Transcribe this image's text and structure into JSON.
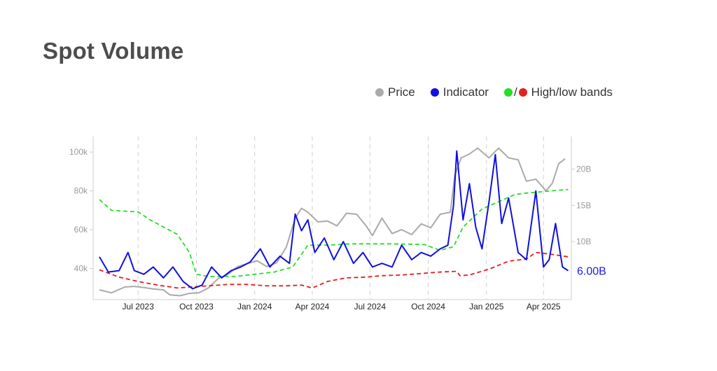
{
  "title": "Spot Volume",
  "legend": {
    "price": "Price",
    "indicator": "Indicator",
    "bands_sep": "/",
    "bands": "High/low bands"
  },
  "colors": {
    "price": "#aaaaaa",
    "indicator": "#1010e0",
    "high": "#22e022",
    "low": "#e02020",
    "title": "#4d4d4d"
  },
  "chart_data": {
    "type": "line",
    "x_ticks": [
      "Jul 2023",
      "Oct 2023",
      "Jan 2024",
      "Apr 2024",
      "Jul 2024",
      "Oct 2024",
      "Jan 2025",
      "Apr 2025"
    ],
    "y_left": {
      "ticks": [
        "40k",
        "60k",
        "80k",
        "100k"
      ],
      "ylim": [
        24000,
        108000
      ]
    },
    "y_right": {
      "ticks": [
        "10B",
        "15B",
        "20B"
      ],
      "ylim": [
        2.0,
        24.5
      ]
    },
    "grid": "vertical dashed",
    "last_value_label": "6.00B",
    "series": [
      {
        "name": "Price",
        "axis": "left",
        "x": [
          "2023-05-01",
          "2023-05-20",
          "2023-06-10",
          "2023-06-25",
          "2023-07-10",
          "2023-07-25",
          "2023-08-10",
          "2023-08-20",
          "2023-09-05",
          "2023-09-20",
          "2023-10-05",
          "2023-10-20",
          "2023-11-05",
          "2023-11-20",
          "2023-12-05",
          "2023-12-20",
          "2024-01-05",
          "2024-01-20",
          "2024-02-05",
          "2024-02-20",
          "2024-03-05",
          "2024-03-15",
          "2024-03-25",
          "2024-04-10",
          "2024-04-25",
          "2024-05-10",
          "2024-05-25",
          "2024-06-10",
          "2024-06-25",
          "2024-07-05",
          "2024-07-20",
          "2024-08-05",
          "2024-08-20",
          "2024-09-05",
          "2024-09-20",
          "2024-10-05",
          "2024-10-20",
          "2024-11-05",
          "2024-11-12",
          "2024-11-22",
          "2024-12-05",
          "2024-12-18",
          "2025-01-05",
          "2025-01-20",
          "2025-02-05",
          "2025-02-20",
          "2025-03-05",
          "2025-03-20",
          "2025-04-05",
          "2025-04-15",
          "2025-04-25",
          "2025-05-05"
        ],
        "values": [
          29000,
          27500,
          30500,
          30800,
          30200,
          29500,
          29000,
          26500,
          26000,
          27200,
          27500,
          30000,
          35000,
          37000,
          41000,
          42500,
          44000,
          41000,
          43000,
          51000,
          66000,
          71000,
          69000,
          64000,
          64500,
          62000,
          68500,
          68000,
          62000,
          57000,
          66000,
          58000,
          60000,
          57500,
          63000,
          61000,
          68000,
          69000,
          88000,
          97000,
          99000,
          102000,
          97000,
          102000,
          97000,
          96000,
          85000,
          86000,
          80000,
          84000,
          94000,
          96500
        ]
      },
      {
        "name": "Indicator",
        "axis": "right",
        "x": [
          "2023-05-01",
          "2023-05-15",
          "2023-06-01",
          "2023-06-15",
          "2023-06-25",
          "2023-07-10",
          "2023-07-25",
          "2023-08-10",
          "2023-08-25",
          "2023-09-10",
          "2023-09-25",
          "2023-10-10",
          "2023-10-25",
          "2023-11-10",
          "2023-11-25",
          "2023-12-10",
          "2023-12-25",
          "2024-01-10",
          "2024-01-25",
          "2024-02-10",
          "2024-02-25",
          "2024-03-05",
          "2024-03-15",
          "2024-03-25",
          "2024-04-05",
          "2024-04-20",
          "2024-05-05",
          "2024-05-20",
          "2024-06-05",
          "2024-06-20",
          "2024-07-05",
          "2024-07-20",
          "2024-08-05",
          "2024-08-20",
          "2024-09-05",
          "2024-09-20",
          "2024-10-05",
          "2024-10-20",
          "2024-11-01",
          "2024-11-10",
          "2024-11-15",
          "2024-11-25",
          "2024-12-05",
          "2024-12-15",
          "2024-12-25",
          "2025-01-05",
          "2025-01-15",
          "2025-01-25",
          "2025-02-05",
          "2025-02-20",
          "2025-03-05",
          "2025-03-20",
          "2025-04-01",
          "2025-04-10",
          "2025-04-20",
          "2025-05-01",
          "2025-05-10"
        ],
        "values": [
          7.9,
          5.8,
          6.0,
          8.5,
          6.0,
          5.5,
          6.5,
          5.0,
          6.5,
          4.5,
          3.5,
          4.0,
          6.5,
          5.0,
          6.0,
          6.5,
          7.2,
          9.0,
          6.5,
          8.0,
          7.0,
          13.8,
          11.5,
          13.0,
          8.5,
          10.5,
          7.5,
          10.0,
          7.0,
          8.5,
          6.5,
          7.0,
          6.5,
          9.5,
          7.5,
          8.5,
          8.0,
          9.0,
          9.5,
          15.0,
          22.5,
          13.0,
          18.0,
          12.0,
          9.0,
          15.5,
          22.0,
          12.5,
          16.0,
          8.5,
          7.5,
          17.0,
          6.5,
          7.5,
          12.5,
          6.5,
          6.0
        ]
      },
      {
        "name": "High band",
        "axis": "right",
        "x": [
          "2023-05-01",
          "2023-05-20",
          "2023-07-01",
          "2023-07-20",
          "2023-09-01",
          "2023-09-20",
          "2023-10-01",
          "2023-10-20",
          "2023-12-01",
          "2024-01-01",
          "2024-02-01",
          "2024-03-01",
          "2024-03-25",
          "2024-04-25",
          "2024-06-01",
          "2024-08-01",
          "2024-09-25",
          "2024-10-20",
          "2024-11-10",
          "2024-11-25",
          "2024-12-25",
          "2025-01-20",
          "2025-02-15",
          "2025-03-05",
          "2025-04-01",
          "2025-05-10"
        ],
        "values": [
          15.8,
          14.3,
          14.1,
          13.0,
          11.0,
          8.5,
          5.5,
          5.2,
          5.2,
          5.5,
          5.8,
          6.5,
          9.5,
          9.5,
          9.7,
          9.7,
          9.6,
          8.8,
          9.3,
          12.0,
          14.5,
          15.5,
          16.5,
          16.7,
          16.9,
          17.2
        ]
      },
      {
        "name": "Low band",
        "axis": "right",
        "x": [
          "2023-05-01",
          "2023-06-01",
          "2023-07-01",
          "2023-08-01",
          "2023-09-01",
          "2023-10-01",
          "2023-10-20",
          "2023-11-20",
          "2023-12-20",
          "2024-01-20",
          "2024-02-20",
          "2024-03-15",
          "2024-04-01",
          "2024-04-25",
          "2024-05-25",
          "2024-06-25",
          "2024-07-20",
          "2024-08-20",
          "2024-09-20",
          "2024-10-20",
          "2024-11-15",
          "2024-11-20",
          "2024-12-05",
          "2025-01-05",
          "2025-02-05",
          "2025-03-05",
          "2025-03-20",
          "2025-04-10",
          "2025-05-10"
        ],
        "values": [
          6.1,
          5.1,
          4.5,
          4.0,
          3.6,
          3.8,
          3.9,
          4.1,
          4.1,
          3.9,
          3.9,
          4.0,
          3.6,
          4.5,
          5.0,
          5.1,
          5.3,
          5.4,
          5.6,
          5.8,
          5.9,
          5.3,
          5.4,
          6.2,
          7.3,
          7.6,
          8.5,
          8.3,
          7.9
        ]
      }
    ]
  }
}
